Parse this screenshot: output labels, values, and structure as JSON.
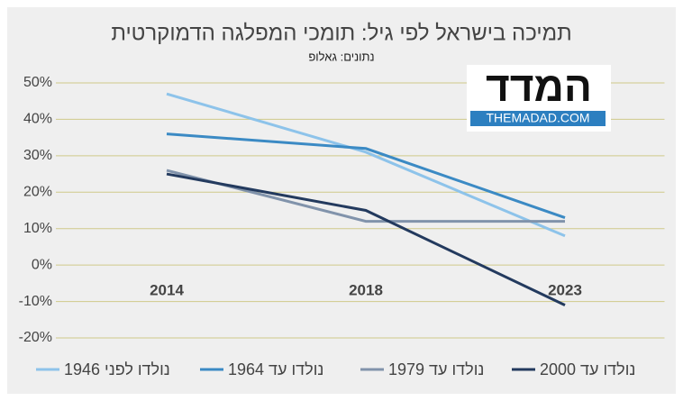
{
  "chart_data": {
    "type": "line",
    "title": "תמיכה בישראל לפי גיל: תומכי המפלגה הדמוקרטית",
    "subtitle": "נתונים: גאלופ",
    "logo": {
      "title": "המדד",
      "site": "THEMADAD.COM"
    },
    "categories": [
      "2014",
      "2018",
      "2023"
    ],
    "series": [
      {
        "name": "נולדו לפני 1946",
        "color": "#8dc3ea",
        "values": [
          47,
          31,
          8
        ]
      },
      {
        "name": "נולדו עד 1964",
        "color": "#3b8ac4",
        "values": [
          36,
          32,
          13
        ]
      },
      {
        "name": "נולדו עד 1979",
        "color": "#8193ab",
        "values": [
          26,
          12,
          12
        ]
      },
      {
        "name": "נולדו עד 2000",
        "color": "#233a5e",
        "values": [
          25,
          15,
          -11
        ]
      }
    ],
    "ylim": [
      -20,
      50
    ],
    "yticks": [
      {
        "value": -20,
        "label": "-20%"
      },
      {
        "value": -10,
        "label": "-10%"
      },
      {
        "value": 0,
        "label": "0%"
      },
      {
        "value": 10,
        "label": "10%"
      },
      {
        "value": 20,
        "label": "20%"
      },
      {
        "value": 30,
        "label": "30%"
      },
      {
        "value": 40,
        "label": "40%"
      },
      {
        "value": 50,
        "label": "50%"
      }
    ],
    "grid": true
  }
}
